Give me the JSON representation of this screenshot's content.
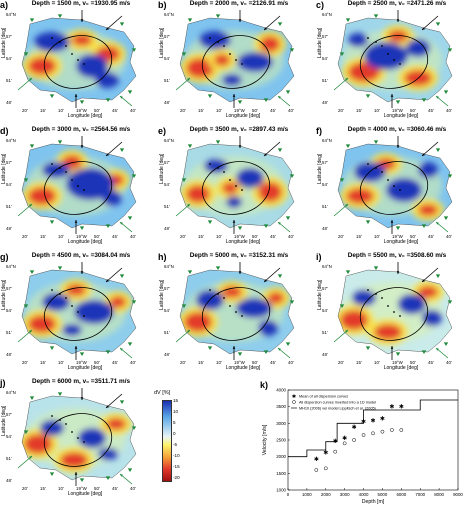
{
  "panels": [
    {
      "label": "a)",
      "title": "Depth = 1500 m, v₀ =1930.95 m/s"
    },
    {
      "label": "b)",
      "title": "Depth = 2000 m, v₀ =2126.91 m/s"
    },
    {
      "label": "c)",
      "title": "Depth = 2500 m, v₀ =2471.26 m/s"
    },
    {
      "label": "d)",
      "title": "Depth = 3000 m, v₀ =2564.56 m/s"
    },
    {
      "label": "e)",
      "title": "Depth = 3500 m, v₀ =2897.43 m/s"
    },
    {
      "label": "f)",
      "title": "Depth = 4000 m, v₀ =3060.46 m/s"
    },
    {
      "label": "g)",
      "title": "Depth = 4500 m, v₀ =3084.04 m/s"
    },
    {
      "label": "h)",
      "title": "Depth = 5000 m, v₀ =3152.31 m/s"
    },
    {
      "label": "i)",
      "title": "Depth = 5500 m, v₀ =3508.60 m/s"
    },
    {
      "label": "j)",
      "title": "Depth = 6000 m, v₀ =3511.71 m/s"
    }
  ],
  "axes": {
    "xlabel": "Longitude [deg]",
    "ylabel": "Latitude [deg]",
    "lat_ticks": [
      "64°N",
      "57'",
      "54'",
      "51'",
      "48'"
    ],
    "lon_ticks": [
      "20'",
      "15'",
      "10'",
      "19°W",
      "50'",
      "45'",
      "40'"
    ]
  },
  "colorbar": {
    "title": "dV [%]",
    "ticks": [
      "15",
      "10",
      "5",
      "0",
      "-5",
      "-10",
      "-15",
      "-20"
    ],
    "colors": [
      "#1a2fb3",
      "#5aa7e8",
      "#e9f5f3",
      "#fdf36a",
      "#f5a23a",
      "#e2382b",
      "#a01010"
    ]
  },
  "panel_k": {
    "label": "k)",
    "legend": [
      "Mean of all dispersion curves",
      "All dispersion curves inverted into a 1D model",
      "MH10 (2006) vel model Lippitsch et al. (2005)"
    ]
  },
  "chart_data": {
    "type": "scatter",
    "xlabel": "Depth [m]",
    "ylabel": "Velocity [m/s]",
    "xlim": [
      0,
      9000
    ],
    "ylim": [
      1000,
      4000
    ],
    "xticks": [
      0,
      1000,
      2000,
      3000,
      4000,
      5000,
      6000,
      7000,
      8000,
      9000
    ],
    "yticks": [
      1000,
      1500,
      2000,
      2500,
      3000,
      3500,
      4000
    ],
    "series": [
      {
        "name": "Mean of all dispersion curves",
        "marker": "star",
        "x": [
          1500,
          2000,
          2500,
          3000,
          3500,
          4000,
          4500,
          5000,
          5500,
          6000
        ],
        "y": [
          1930.95,
          2126.91,
          2471.26,
          2564.56,
          2897.43,
          3060.46,
          3084.04,
          3152.31,
          3508.6,
          3511.71
        ]
      },
      {
        "name": "All dispersion curves inverted into a 1D model",
        "marker": "circle",
        "x": [
          1500,
          2000,
          2500,
          3000,
          3500,
          4000,
          4500,
          5000,
          5500,
          6000
        ],
        "y": [
          1600,
          1650,
          2150,
          2400,
          2500,
          2650,
          2700,
          2750,
          2800,
          2800
        ]
      },
      {
        "name": "MH10 (2006) vel model Lippitsch et al. (2005)",
        "marker": "line",
        "x": [
          0,
          1000,
          1000,
          2000,
          2000,
          2600,
          2600,
          4000,
          4000,
          7000,
          7000,
          9000
        ],
        "y": [
          2000,
          2000,
          2200,
          2200,
          2450,
          2450,
          3000,
          3000,
          3400,
          3400,
          3700,
          3700
        ]
      }
    ]
  }
}
